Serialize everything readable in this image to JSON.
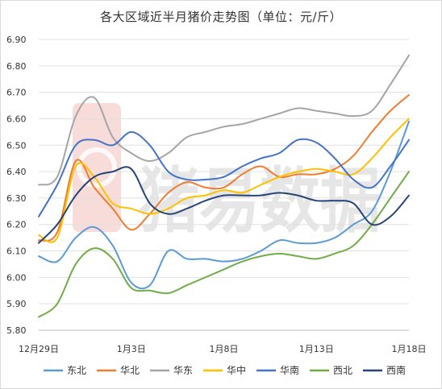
{
  "chart_data": {
    "type": "line",
    "title": "各大区域近半月猪价走势图（单位：元/斤）",
    "watermark": "猪易数据",
    "y_ticks": [
      "6.90",
      "6.80",
      "6.70",
      "6.60",
      "6.50",
      "6.40",
      "6.30",
      "6.20",
      "6.10",
      "6.00",
      "5.90",
      "5.80"
    ],
    "x_ticks": [
      "12月29日",
      "1月3日",
      "1月8日",
      "1月13日",
      "1月18日"
    ],
    "ylim": [
      5.8,
      6.9
    ],
    "grid": "horizontal",
    "legend_position": "bottom",
    "x": [
      "12月29日",
      "12月30日",
      "12月31日",
      "1月1日",
      "1月2日",
      "1月3日",
      "1月4日",
      "1月5日",
      "1月6日",
      "1月7日",
      "1月8日",
      "1月9日",
      "1月10日",
      "1月11日",
      "1月12日",
      "1月13日",
      "1月14日",
      "1月15日",
      "1月16日",
      "1月17日",
      "1月18日"
    ],
    "series": [
      {
        "name": "东北",
        "color": "#5b9bd5",
        "values": [
          6.08,
          6.06,
          6.15,
          6.19,
          6.12,
          5.98,
          5.97,
          6.1,
          6.07,
          6.07,
          6.06,
          6.07,
          6.1,
          6.14,
          6.13,
          6.13,
          6.15,
          6.2,
          6.25,
          6.4,
          6.59
        ]
      },
      {
        "name": "华北",
        "color": "#ed7d31",
        "values": [
          6.14,
          6.17,
          6.44,
          6.34,
          6.26,
          6.18,
          6.24,
          6.32,
          6.36,
          6.34,
          6.34,
          6.39,
          6.42,
          6.38,
          6.39,
          6.39,
          6.41,
          6.46,
          6.55,
          6.63,
          6.69
        ]
      },
      {
        "name": "华东",
        "color": "#a5a5a5",
        "values": [
          6.35,
          6.38,
          6.61,
          6.68,
          6.53,
          6.47,
          6.44,
          6.47,
          6.53,
          6.55,
          6.57,
          6.58,
          6.6,
          6.62,
          6.64,
          6.63,
          6.62,
          6.61,
          6.63,
          6.73,
          6.84
        ]
      },
      {
        "name": "华中",
        "color": "#ffc000",
        "values": [
          6.16,
          6.15,
          6.42,
          6.38,
          6.28,
          6.26,
          6.24,
          6.26,
          6.3,
          6.31,
          6.33,
          6.32,
          6.35,
          6.38,
          6.4,
          6.41,
          6.4,
          6.39,
          6.45,
          6.53,
          6.6
        ]
      },
      {
        "name": "华南",
        "color": "#4472c4",
        "values": [
          6.23,
          6.35,
          6.5,
          6.52,
          6.5,
          6.55,
          6.5,
          6.4,
          6.37,
          6.37,
          6.38,
          6.42,
          6.45,
          6.47,
          6.52,
          6.51,
          6.45,
          6.37,
          6.34,
          6.42,
          6.52
        ]
      },
      {
        "name": "西北",
        "color": "#70ad47",
        "values": [
          5.85,
          5.9,
          6.05,
          6.11,
          6.07,
          5.96,
          5.95,
          5.94,
          5.97,
          6.0,
          6.03,
          6.06,
          6.08,
          6.09,
          6.08,
          6.07,
          6.09,
          6.12,
          6.2,
          6.3,
          6.4
        ]
      },
      {
        "name": "西南",
        "color": "#264478",
        "values": [
          6.13,
          6.2,
          6.31,
          6.38,
          6.4,
          6.41,
          6.28,
          6.24,
          6.26,
          6.29,
          6.31,
          6.31,
          6.31,
          6.32,
          6.31,
          6.29,
          6.29,
          6.28,
          6.2,
          6.23,
          6.31
        ]
      }
    ]
  }
}
